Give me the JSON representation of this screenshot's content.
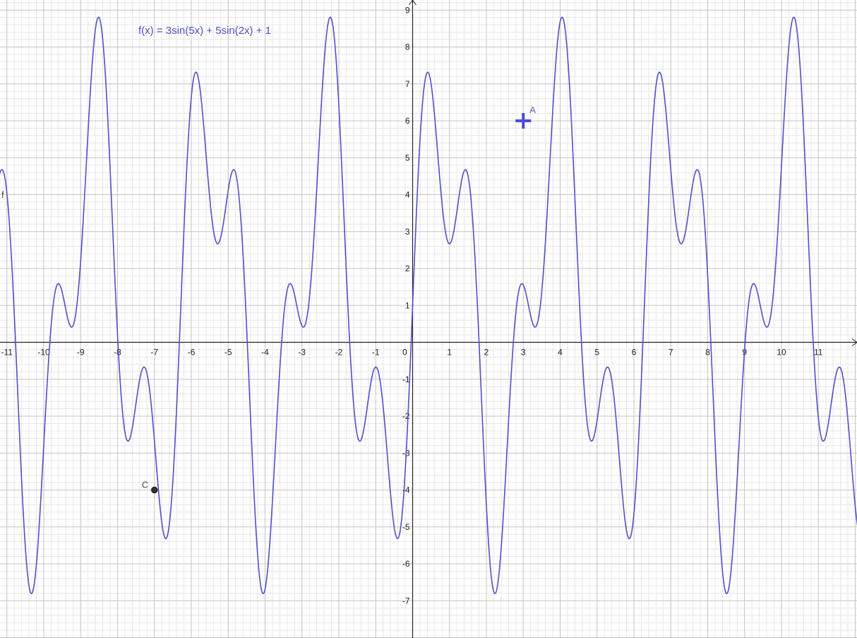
{
  "chart_data": {
    "type": "line",
    "title": "",
    "function_label": "f(x) = 3sin(5x) + 5sin(2x) + 1",
    "function_name": "f",
    "function": {
      "terms": [
        {
          "a": 3,
          "k": 5
        },
        {
          "a": 5,
          "k": 2
        }
      ],
      "constant": 1
    },
    "xlim": [
      -11.2,
      12.1
    ],
    "ylim": [
      -7.8,
      9.3
    ],
    "grid": true,
    "x_ticks": [
      "-11",
      "-10",
      "-9",
      "-8",
      "-7",
      "-6",
      "-5",
      "-4",
      "-3",
      "-2",
      "-1",
      "0",
      "1",
      "2",
      "3",
      "4",
      "5",
      "6",
      "7",
      "8",
      "9",
      "10",
      "11"
    ],
    "y_ticks": [
      "-7",
      "-6",
      "-5",
      "-4",
      "-3",
      "-2",
      "-1",
      "1",
      "2",
      "3",
      "4",
      "5",
      "6",
      "7",
      "8",
      "9"
    ],
    "points": [
      {
        "name": "A",
        "x": 3,
        "y": 6,
        "style": "cross",
        "color": "#4a4ad8"
      },
      {
        "name": "C",
        "x": -7,
        "y": -4,
        "style": "dot",
        "color": "#333333"
      }
    ],
    "curve_color": "#5050c8"
  }
}
